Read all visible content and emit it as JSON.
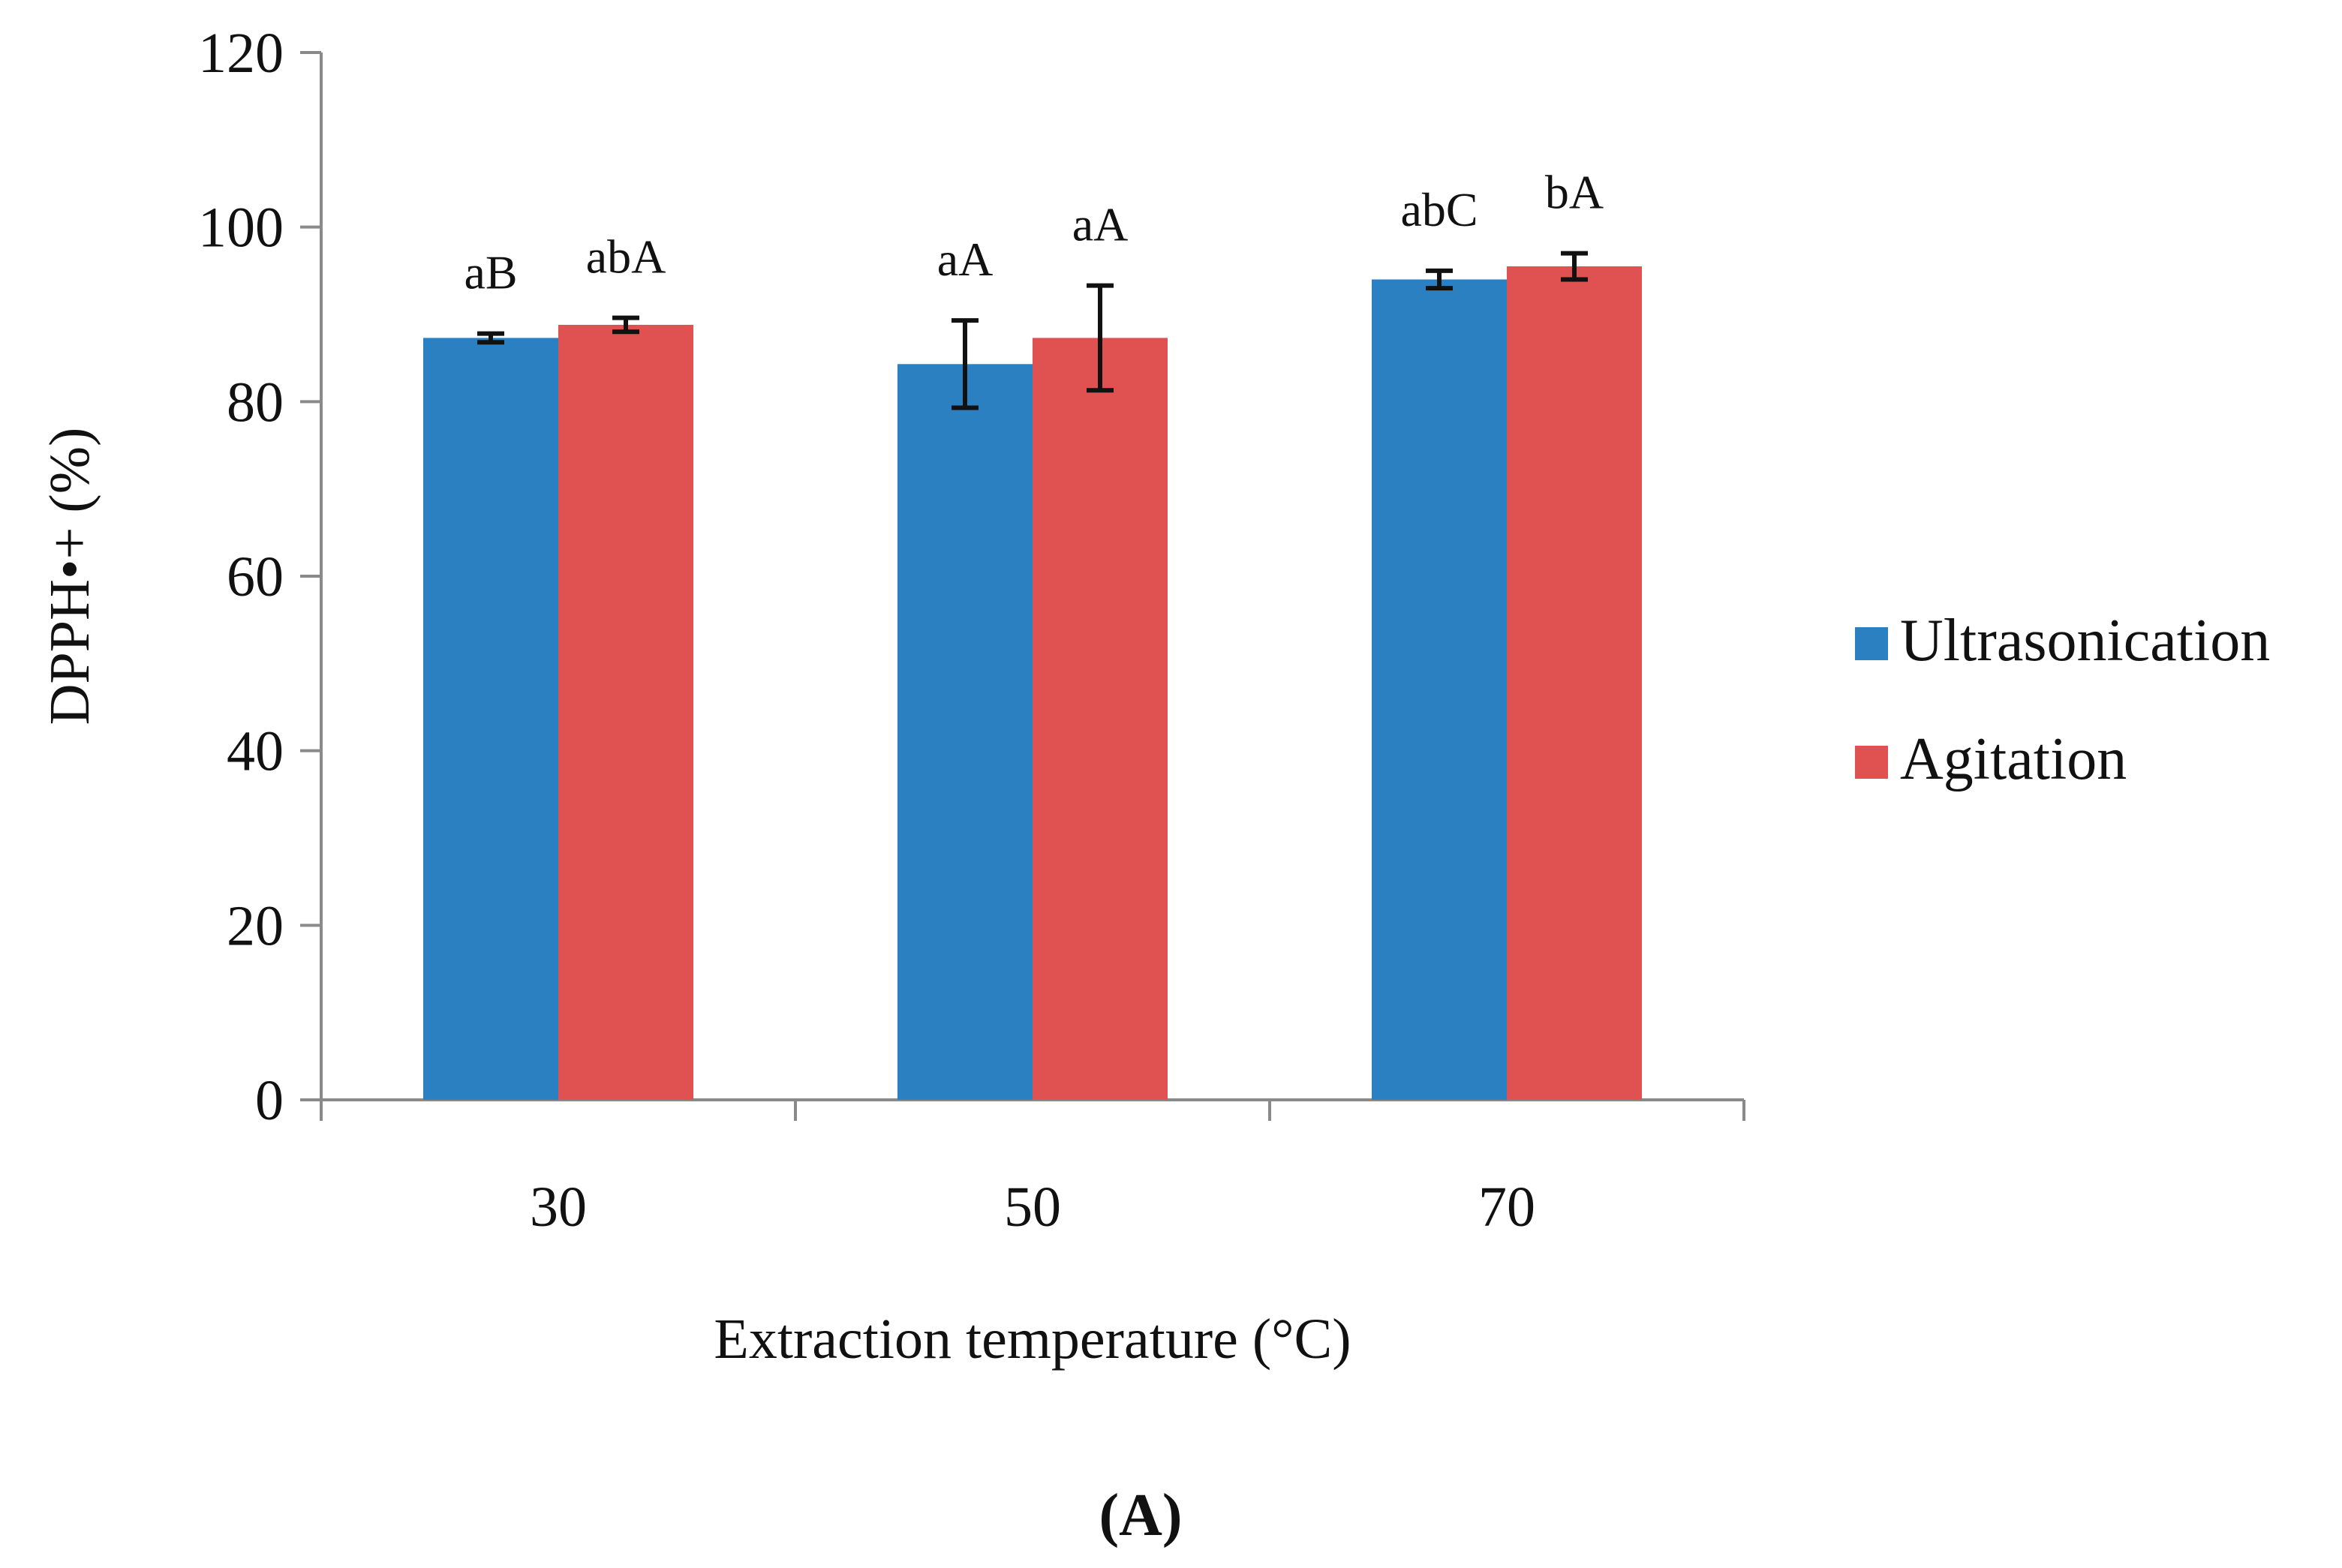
{
  "chart_data": {
    "type": "bar",
    "panel_label": "(A)",
    "title": "",
    "xlabel": "Extraction temperature (°C)",
    "ylabel": "DPPH•+ (%)",
    "categories": [
      "30",
      "50",
      "70"
    ],
    "ylim": [
      0,
      120
    ],
    "yticks": [
      "0",
      "20",
      "40",
      "60",
      "80",
      "100",
      "120"
    ],
    "grid": false,
    "legend_position": "right",
    "series": [
      {
        "name": "Ultrasonication",
        "color": "#2a80c0",
        "values": [
          87.3,
          84.3,
          94.0
        ],
        "errors": [
          0.5,
          5.0,
          1.0
        ],
        "labels": [
          "aB",
          "aA",
          "abC"
        ]
      },
      {
        "name": "Agitation",
        "color": "#e05252",
        "values": [
          88.8,
          87.3,
          95.5
        ],
        "errors": [
          0.8,
          6.0,
          1.5
        ],
        "labels": [
          "abA",
          "aA",
          "bA"
        ]
      }
    ]
  }
}
